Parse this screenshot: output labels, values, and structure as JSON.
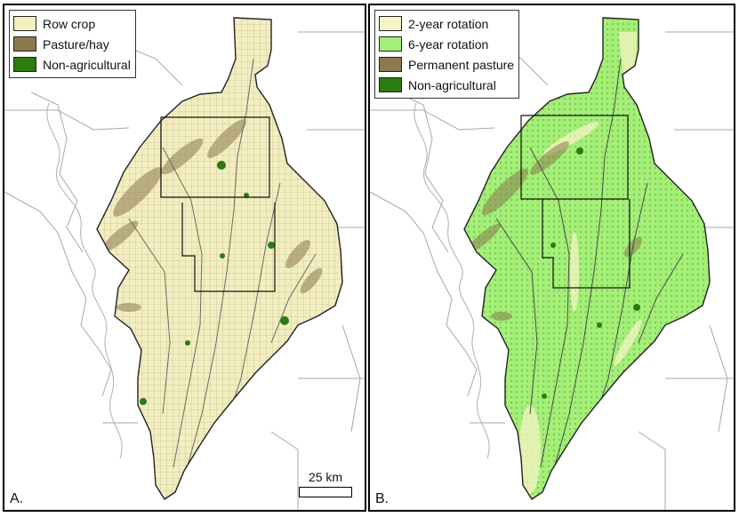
{
  "colors": {
    "row_crop": "#f5f0c0",
    "pasture_hay": "#8a7a4e",
    "non_agricultural": "#2d7a10",
    "two_year_rotation": "#f7f3c4",
    "six_year_rotation": "#a5f07a",
    "permanent_pasture": "#8a7a4e",
    "boundary_lines": "#9a9a9a",
    "watershed_outline": "#222222"
  },
  "panel_a": {
    "label": "A.",
    "legend": [
      {
        "label": "Row crop",
        "color": "#f5f0c0"
      },
      {
        "label": "Pasture/hay",
        "color": "#8a7a4e"
      },
      {
        "label": "Non-agricultural",
        "color": "#2d7a10"
      }
    ],
    "scalebar_label": "25 km"
  },
  "panel_b": {
    "label": "B.",
    "legend": [
      {
        "label": "2-year rotation",
        "color": "#f7f3c4"
      },
      {
        "label": "6-year rotation",
        "color": "#a5f07a"
      },
      {
        "label": "Permanent pasture",
        "color": "#8a7a4e"
      },
      {
        "label": "Non-agricultural",
        "color": "#2d7a10"
      }
    ]
  }
}
